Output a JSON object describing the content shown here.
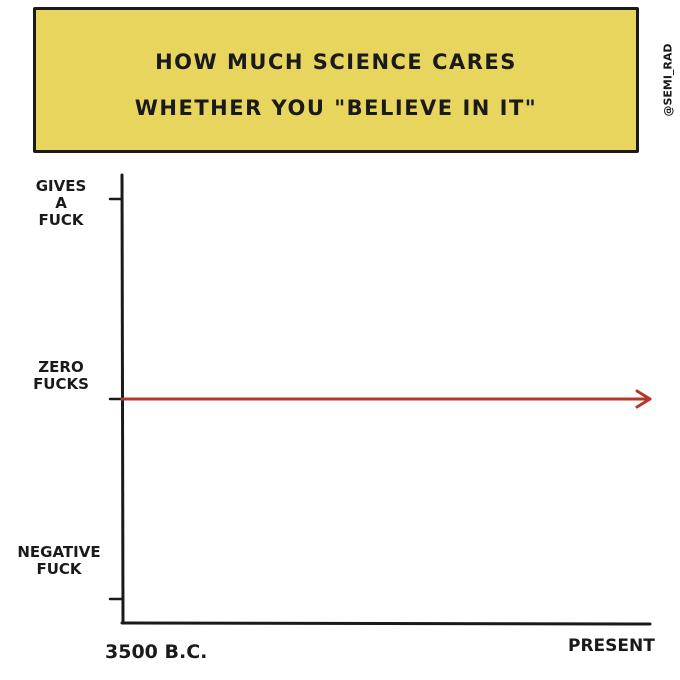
{
  "header": {
    "title_line1": "HOW MUCH SCIENCE CARES",
    "title_line2": "WHETHER YOU \"BELIEVE IN IT\"",
    "credit": "@SEMI_RAD",
    "background_color": "#e8d55e"
  },
  "chart_data": {
    "type": "line",
    "title": "HOW MUCH SCIENCE CARES WHETHER YOU \"BELIEVE IN IT\"",
    "x_tick_labels": [
      "3500 B.C.",
      "PRESENT"
    ],
    "y_ticks": [
      {
        "value": 1,
        "lines": [
          "GIVES",
          "A",
          "FUCK"
        ]
      },
      {
        "value": 0,
        "lines": [
          "ZERO",
          "FUCKS"
        ]
      },
      {
        "value": -1,
        "lines": [
          "NEGATIVE",
          "FUCK"
        ]
      }
    ],
    "series": [
      {
        "x": [
          "3500 B.C.",
          "PRESENT"
        ],
        "values": [
          0,
          0
        ],
        "color": "#b8372a",
        "arrow_end": true
      }
    ],
    "ylim": [
      -1.12,
      1.12
    ],
    "grid": false,
    "axis_color": "#1a1a1a"
  }
}
